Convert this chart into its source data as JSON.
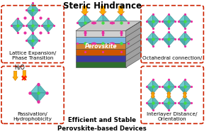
{
  "title": "Steric Hindrance",
  "subtitle": "Efficient and Stable\nPerovskite-based Devices",
  "title_color": "#000000",
  "subtitle_color": "#000000",
  "background_color": "#ffffff",
  "box_edge_color": "#cc2200",
  "teal_color": "#5bbcbc",
  "teal_dark": "#3a9090",
  "magenta_color": "#e830a0",
  "green_color": "#44dd44",
  "orange_color": "#ffaa00",
  "orange_dark": "#cc7700",
  "labels": {
    "top_left": "Lattice Expansion/\nPhase Transition",
    "top_right": "Octahedral connection/",
    "bottom_left": "Passivation/\nHydrophobicity",
    "bottom_right": "Interlayer Distance/\nOrientation"
  },
  "water_label": "H₂O",
  "perovskite_label": "Perovskite",
  "layer_colors": [
    "#d0d0d0",
    "#add8e6",
    "#1a3a8c",
    "#cc6600",
    "#2a7a2a",
    "#3a3a8c"
  ],
  "figsize": [
    2.95,
    1.89
  ],
  "dpi": 100
}
